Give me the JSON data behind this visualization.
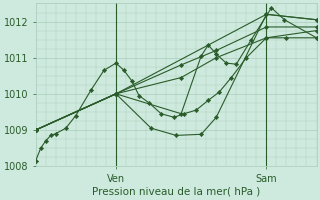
{
  "bg_color": "#ceeade",
  "grid_color": "#aaccbb",
  "line_color": "#2a5c2a",
  "marker_color": "#2a5c2a",
  "xlabel": "Pression niveau de la mer( hPa )",
  "ylim": [
    1008.0,
    1012.5
  ],
  "yticks": [
    1008,
    1009,
    1010,
    1011,
    1012
  ],
  "ven_x": 80,
  "sam_x": 230,
  "xmin": 0,
  "xmax": 280,
  "series": [
    [
      0,
      1008.15,
      5,
      1008.5,
      10,
      1008.7,
      15,
      1008.85,
      20,
      1008.9,
      30,
      1009.05,
      40,
      1009.4,
      55,
      1010.1,
      68,
      1010.65,
      80,
      1010.85,
      88,
      1010.65,
      96,
      1010.35,
      103,
      1009.95,
      113,
      1009.75,
      125,
      1009.45,
      138,
      1009.35,
      148,
      1009.45,
      160,
      1009.55,
      172,
      1009.82,
      183,
      1010.05,
      195,
      1010.45,
      210,
      1011.0,
      230,
      1011.55,
      250,
      1011.55,
      280,
      1011.55
    ],
    [
      0,
      1009.0,
      80,
      1010.0,
      115,
      1009.05,
      140,
      1008.85,
      165,
      1008.88,
      180,
      1009.35,
      230,
      1012.2,
      280,
      1012.05
    ],
    [
      0,
      1009.0,
      80,
      1010.0,
      145,
      1009.45,
      165,
      1011.05,
      172,
      1011.35,
      180,
      1011.1,
      190,
      1010.85,
      200,
      1010.82,
      215,
      1011.5,
      235,
      1012.38,
      248,
      1012.05,
      280,
      1011.55
    ],
    [
      0,
      1009.0,
      80,
      1010.0,
      145,
      1010.45,
      180,
      1011.0,
      230,
      1011.55,
      280,
      1011.75
    ],
    [
      0,
      1009.0,
      80,
      1010.0,
      145,
      1010.8,
      180,
      1011.2,
      230,
      1011.85,
      280,
      1011.85
    ],
    [
      0,
      1009.0,
      80,
      1010.0,
      230,
      1012.2,
      280,
      1012.05
    ]
  ],
  "ven_label": "Ven",
  "sam_label": "Sam"
}
